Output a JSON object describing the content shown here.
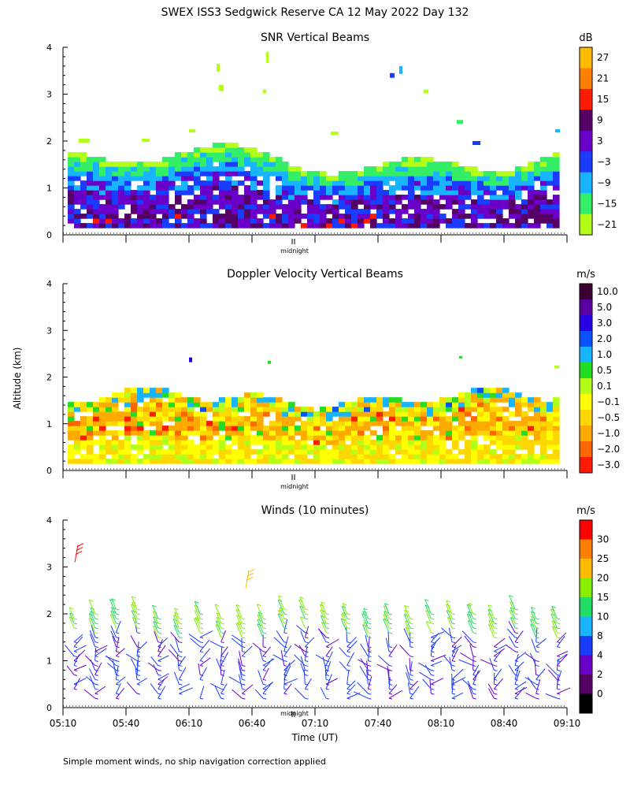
{
  "figure": {
    "title": "SWEX ISS3 Sedgwick Reserve CA  12 May 2022 Day 132",
    "ylabel": "Altitude (km)",
    "xlabel": "Time (UT)",
    "footnote": "Simple moment winds, no ship navigation correction applied",
    "midnight_label": "midnight"
  },
  "chart_data": [
    {
      "type": "heatmap",
      "title": "SNR Vertical Beams",
      "colorbar_unit": "dB",
      "ylim": [
        0,
        4
      ],
      "yticks": [
        "0",
        "1",
        "2",
        "3",
        "4"
      ],
      "colorbar_labels": [
        "27",
        "21",
        "15",
        "9",
        "3",
        "−3",
        "−9",
        "−15",
        "−21"
      ],
      "colors": [
        "#ffbb00",
        "#ff7f00",
        "#ff1a00",
        "#550066",
        "#6a00c8",
        "#1a3cff",
        "#19b4ff",
        "#33ee66",
        "#b4ff19"
      ]
    },
    {
      "type": "heatmap",
      "title": "Doppler Velocity Vertical Beams",
      "colorbar_unit": "m/s",
      "ylim": [
        0,
        4
      ],
      "yticks": [
        "0",
        "1",
        "2",
        "3",
        "4"
      ],
      "colorbar_labels": [
        "10.0",
        "5.0",
        "3.0",
        "2.0",
        "1.0",
        "0.5",
        "0.1",
        "−0.1",
        "−0.5",
        "−1.0",
        "−2.0",
        "−3.0"
      ],
      "colors": [
        "#3a0030",
        "#5a00a0",
        "#2800e6",
        "#0a50ff",
        "#19b4ff",
        "#22dd22",
        "#b4ff19",
        "#ffff00",
        "#ffd700",
        "#ffaa00",
        "#ff6600",
        "#ff1a00"
      ]
    },
    {
      "type": "scatter",
      "title": "Winds (10 minutes)",
      "colorbar_unit": "m/s",
      "ylim": [
        0,
        4
      ],
      "yticks": [
        "0",
        "1",
        "2",
        "3",
        "4"
      ],
      "xticks": [
        "05:10",
        "05:40",
        "06:10",
        "06:40",
        "07:10",
        "07:40",
        "08:10",
        "08:40",
        "09:10"
      ],
      "colorbar_labels": [
        "30",
        "25",
        "20",
        "15",
        "10",
        "8",
        "4",
        "2",
        "0"
      ],
      "colors": [
        "#ff0000",
        "#ff7f00",
        "#ffbb00",
        "#88ee00",
        "#22dd66",
        "#19b4ff",
        "#1a3cff",
        "#6a00c8",
        "#550066",
        "#000000"
      ]
    }
  ]
}
